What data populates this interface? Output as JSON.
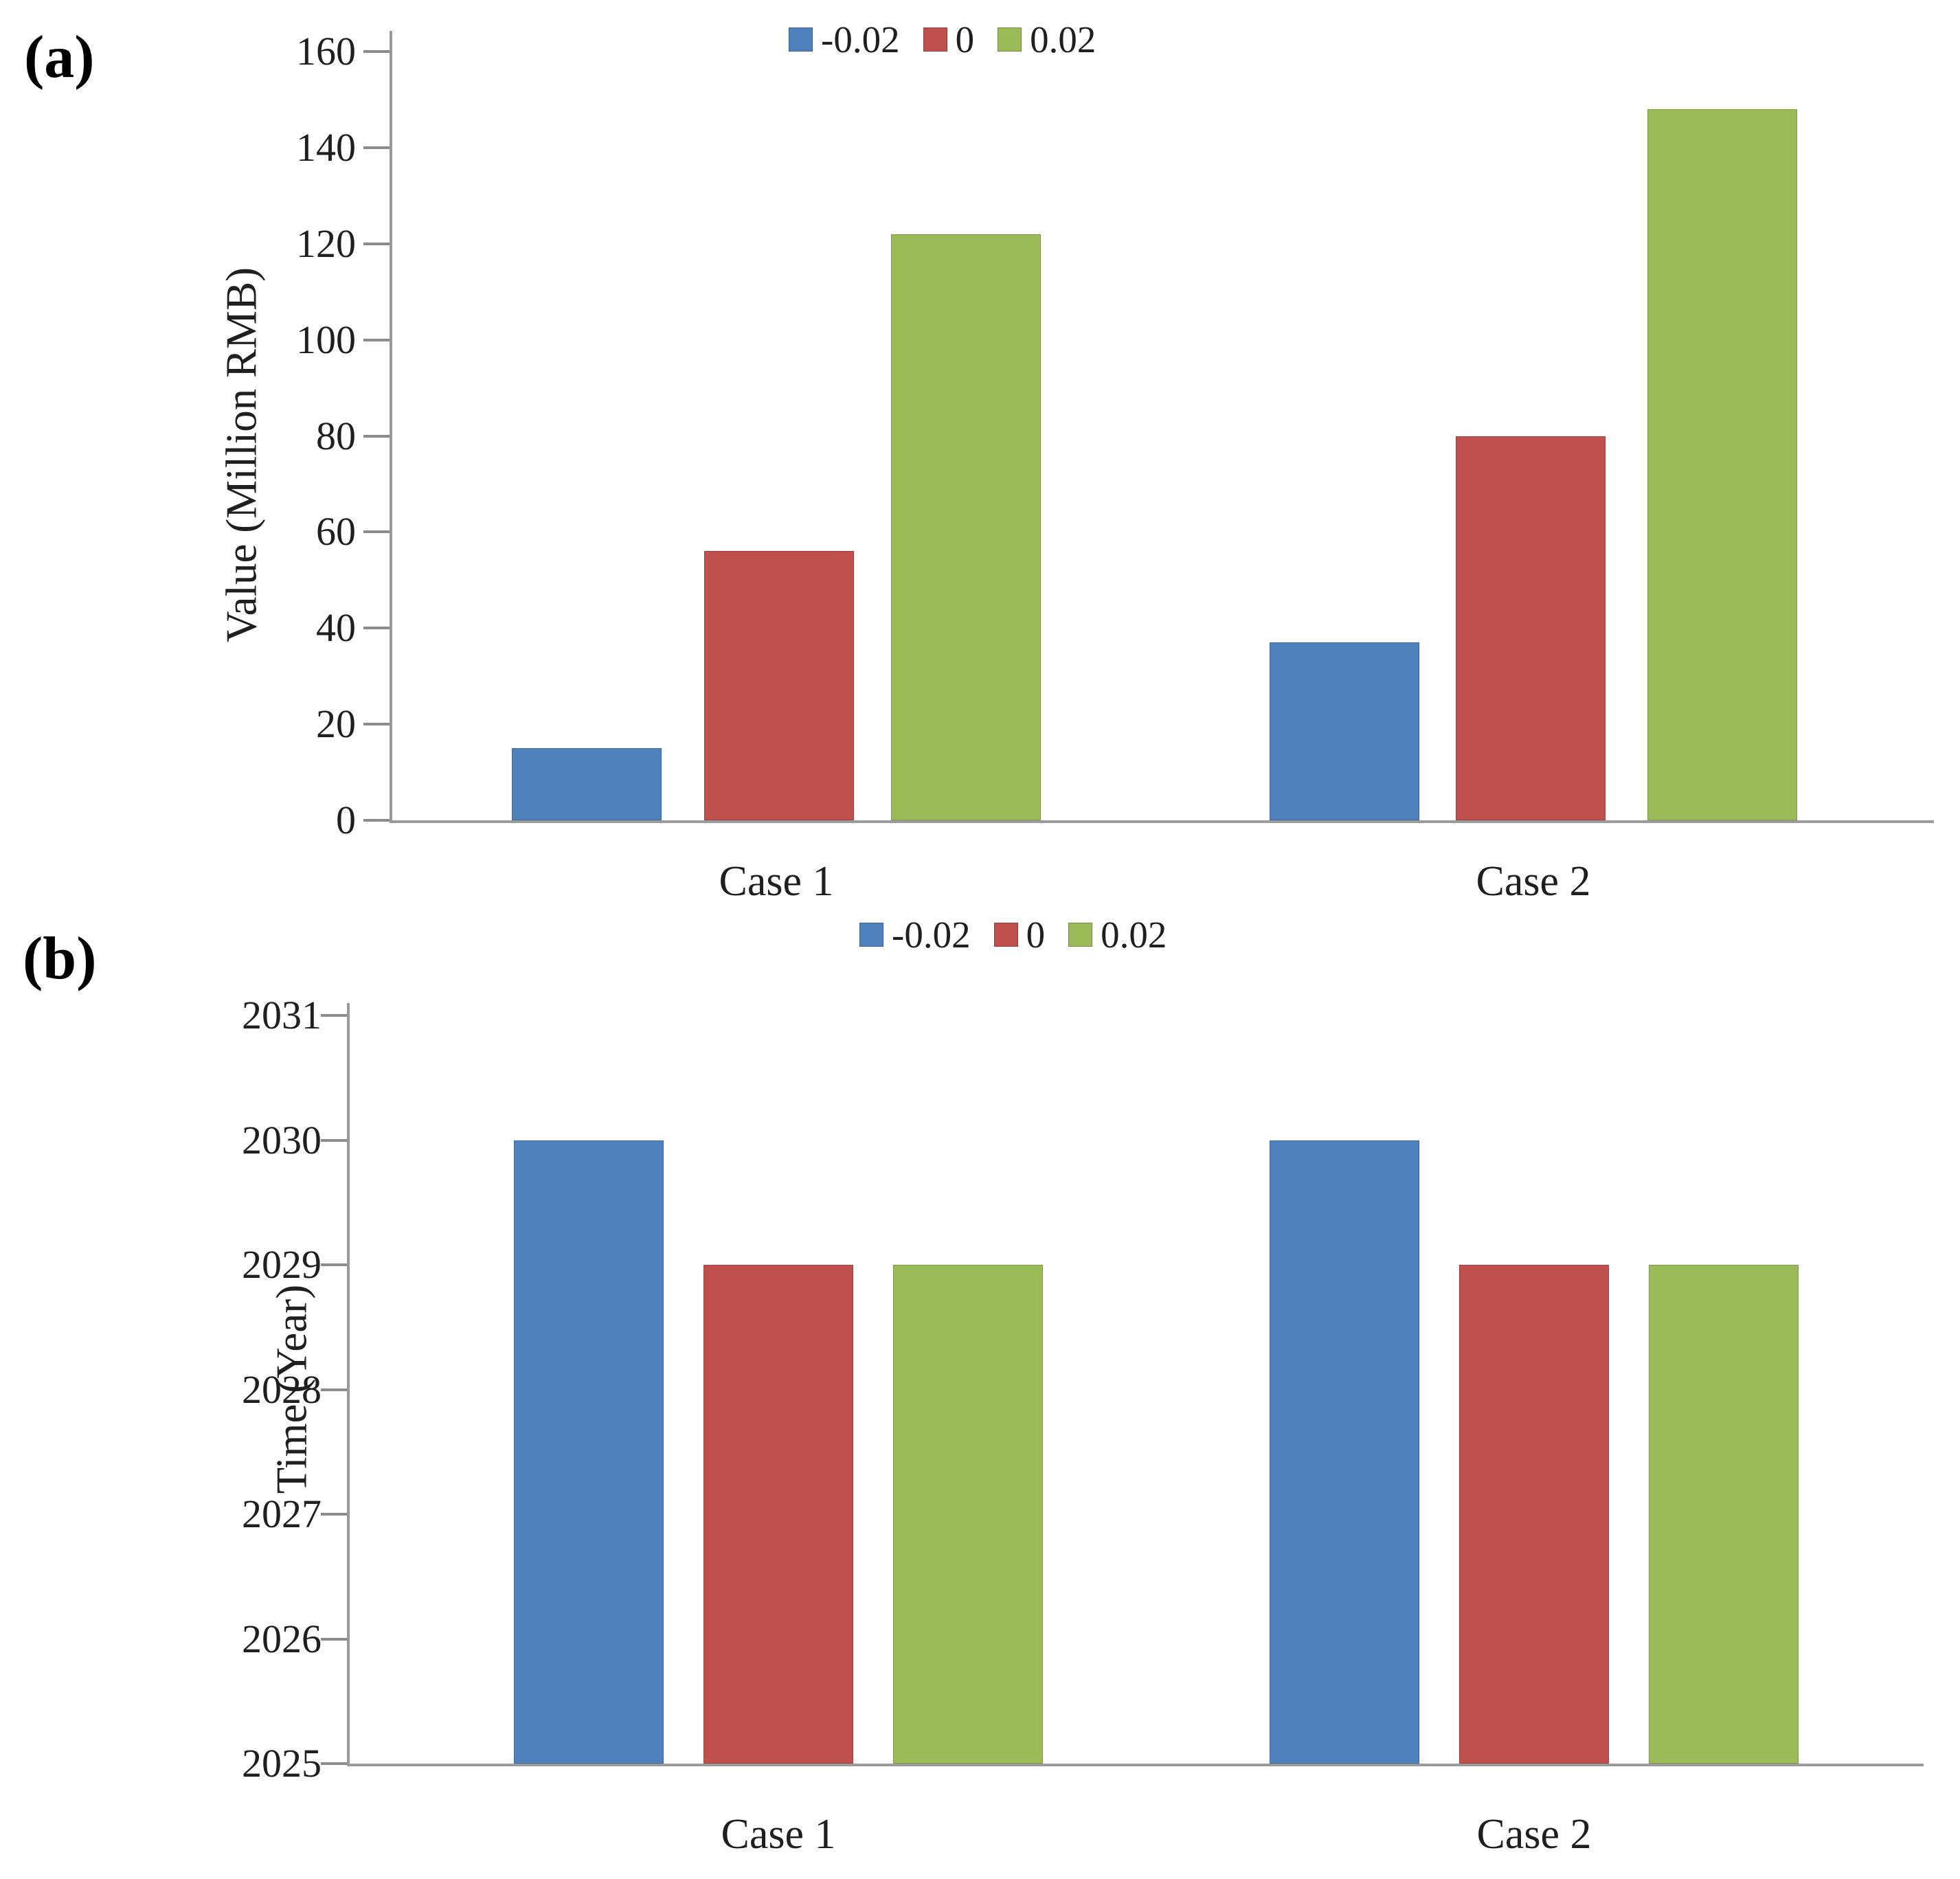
{
  "figure": {
    "background": "#ffffff",
    "panels": [
      {
        "label": "(a)"
      },
      {
        "label": "(b)"
      }
    ]
  },
  "legend": {
    "items": [
      {
        "label": "-0.02",
        "color": "#4F81BD"
      },
      {
        "label": "0",
        "color": "#C0504D"
      },
      {
        "label": "0.02",
        "color": "#9BBB59"
      }
    ]
  },
  "colors": {
    "blue": "#4F81BD",
    "red": "#C0504D",
    "green": "#9BBB59",
    "axis": "#9a9a9a",
    "text": "#1f1f1f"
  },
  "chart_data": [
    {
      "type": "bar",
      "panel": "a",
      "categories": [
        "Case 1",
        "Case 2"
      ],
      "series": [
        {
          "name": "-0.02",
          "color": "#4F81BD",
          "values": [
            15,
            37
          ]
        },
        {
          "name": "0",
          "color": "#C0504D",
          "values": [
            56,
            80
          ]
        },
        {
          "name": "0.02",
          "color": "#9BBB59",
          "values": [
            122,
            148
          ]
        }
      ],
      "ylabel": "Value (Million RMB)",
      "ylim": [
        0,
        160
      ],
      "ytick_step": 20,
      "ytick_labels": [
        "160",
        "140",
        "120",
        "100",
        "80",
        "60",
        "40",
        "20",
        "0"
      ],
      "legend_position": "top",
      "legend_entries": [
        "-0.02",
        "0",
        "0.02"
      ],
      "grid": false
    },
    {
      "type": "bar",
      "panel": "b",
      "categories": [
        "Case 1",
        "Case 2"
      ],
      "series": [
        {
          "name": "-0.02",
          "color": "#4F81BD",
          "values": [
            2030,
            2030
          ]
        },
        {
          "name": "0",
          "color": "#C0504D",
          "values": [
            2029,
            2029
          ]
        },
        {
          "name": "0.02",
          "color": "#9BBB59",
          "values": [
            2029,
            2029
          ]
        }
      ],
      "ylabel": "Time (Year)",
      "ylim": [
        2025,
        2031
      ],
      "ytick_step": 1,
      "ytick_labels": [
        "2031",
        "2030",
        "2029",
        "2028",
        "2027",
        "2026",
        "2025"
      ],
      "legend_position": "top",
      "legend_entries": [
        "-0.02",
        "0",
        "0.02"
      ],
      "grid": false
    }
  ]
}
